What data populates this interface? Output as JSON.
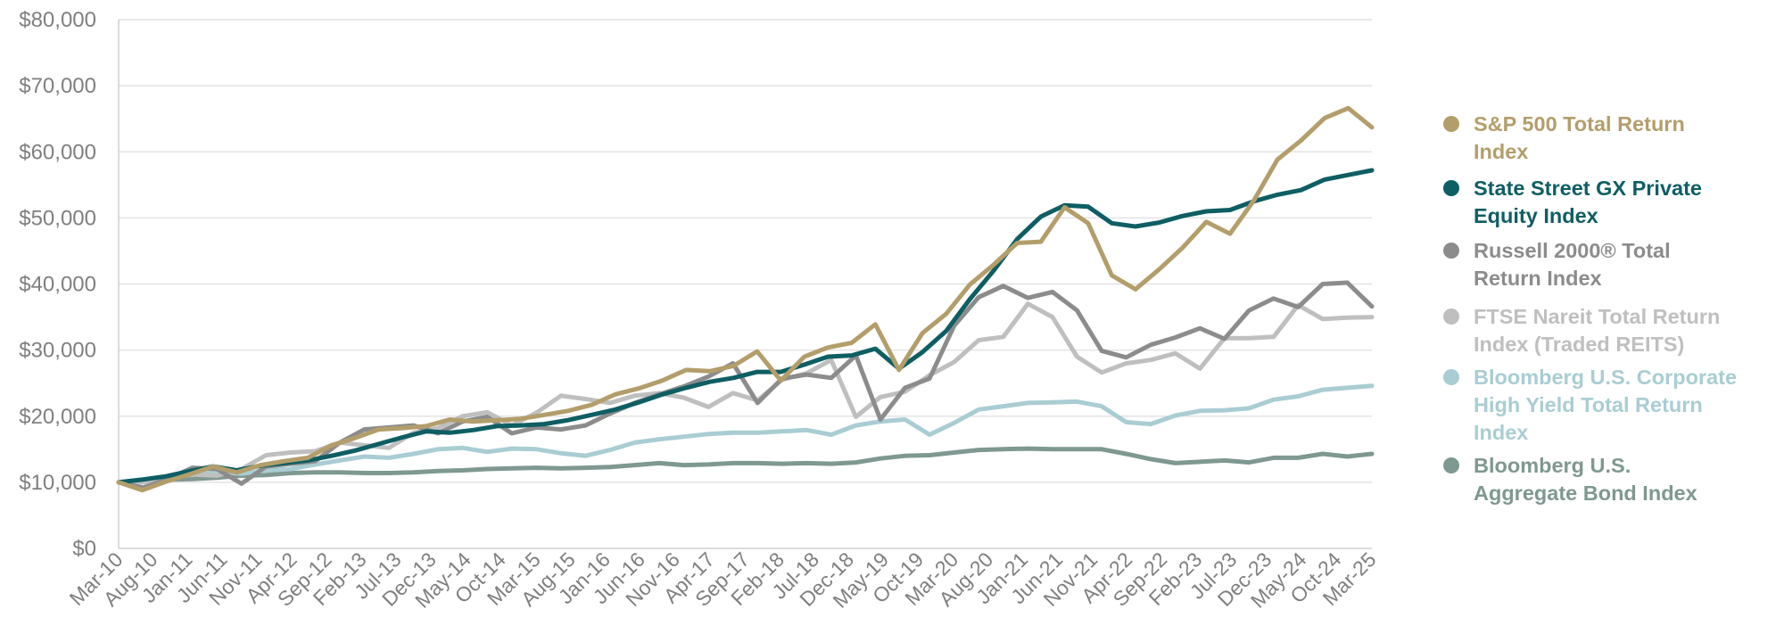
{
  "chart_data": {
    "type": "line",
    "title": "",
    "xlabel": "",
    "ylabel": "",
    "ylim": [
      0,
      80000
    ],
    "yticks": [
      0,
      10000,
      20000,
      30000,
      40000,
      50000,
      60000,
      70000,
      80000
    ],
    "ytick_labels": [
      "$0",
      "$10,000",
      "$20,000",
      "$30,000",
      "$40,000",
      "$50,000",
      "$60,000",
      "$70,000",
      "$80,000"
    ],
    "grid": true,
    "legend_position": "right",
    "x_tick_labels": [
      "Mar-10",
      "Aug-10",
      "Jan-11",
      "Jun-11",
      "Nov-11",
      "Apr-12",
      "Sep-12",
      "Feb-13",
      "Jul-13",
      "Dec-13",
      "May-14",
      "Oct-14",
      "Mar-15",
      "Aug-15",
      "Jan-16",
      "Jun-16",
      "Nov-16",
      "Apr-17",
      "Sep-17",
      "Feb-18",
      "Jul-18",
      "Dec-18",
      "May-19",
      "Oct-19",
      "Mar-20",
      "Aug-20",
      "Jan-21",
      "Jun-21",
      "Nov-21",
      "Apr-22",
      "Sep-22",
      "Feb-23",
      "Jul-23",
      "Dec-23",
      "May-24",
      "Oct-24",
      "Mar-25"
    ],
    "series": [
      {
        "name": "Bloomberg U.S. Aggregate Bond Index",
        "legend_lines": [
          "Bloomberg U.S.",
          "Aggregate Bond Index"
        ],
        "color": "#7f9891",
        "values": [
          10000,
          10300,
          10400,
          10500,
          10700,
          11000,
          11100,
          11400,
          11500,
          11500,
          11400,
          11400,
          11500,
          11700,
          11800,
          12000,
          12100,
          12200,
          12100,
          12200,
          12300,
          12600,
          12900,
          12600,
          12700,
          12900,
          12900,
          12800,
          12900,
          12800,
          13000,
          13600,
          14000,
          14100,
          14500,
          14900,
          15000,
          15100,
          15000,
          15000,
          15000,
          14300,
          13500,
          12900,
          13100,
          13300,
          13000,
          13700,
          13700,
          14300,
          13900,
          14300
        ]
      },
      {
        "name": "Bloomberg U.S. Corporate High Yield Total Return Index",
        "legend_lines": [
          "Bloomberg U.S. Corporate",
          "High Yield Total Return",
          "Index"
        ],
        "color": "#a9cdd3",
        "values": [
          10000,
          10400,
          10900,
          11300,
          11600,
          11300,
          11800,
          12000,
          12700,
          13300,
          13900,
          13700,
          14300,
          15000,
          15200,
          14600,
          15100,
          15000,
          14400,
          14000,
          14900,
          16000,
          16500,
          16900,
          17300,
          17500,
          17500,
          17700,
          17900,
          17200,
          18600,
          19200,
          19500,
          17200,
          19000,
          21000,
          21500,
          22000,
          22100,
          22200,
          21500,
          19100,
          18800,
          20100,
          20800,
          20900,
          21200,
          22500,
          23000,
          24000,
          24300,
          24600
        ]
      },
      {
        "name": "FTSE Nareit Total Return Index (Traded REITS)",
        "legend_lines": [
          "FTSE Nareit Total  Return",
          "Index (Traded REITS)"
        ],
        "color": "#bfbfbf",
        "values": [
          10000,
          10000,
          10500,
          11200,
          11000,
          12000,
          14100,
          14500,
          14700,
          16000,
          15600,
          15200,
          17500,
          18200,
          20000,
          20600,
          18600,
          20500,
          23100,
          22600,
          22000,
          23100,
          23500,
          22800,
          21400,
          23500,
          22400,
          25500,
          26500,
          28500,
          19900,
          22900,
          23700,
          26200,
          28200,
          31500,
          32000,
          37000,
          35000,
          29000,
          26600,
          28000,
          28500,
          29500,
          27200,
          31800,
          31800,
          32000,
          36800,
          34700,
          34900,
          35000
        ]
      },
      {
        "name": "Russell 2000® Total Return Index",
        "legend_lines": [
          "Russell 2000® Total",
          "Return Index"
        ],
        "color": "#8c8c8c",
        "values": [
          10000,
          9200,
          10500,
          12200,
          12000,
          9800,
          12400,
          12800,
          13200,
          16000,
          18000,
          18300,
          18600,
          17400,
          19200,
          19900,
          17400,
          18300,
          18000,
          18600,
          20400,
          22000,
          23300,
          24500,
          26000,
          28000,
          22000,
          25700,
          26300,
          25800,
          29200,
          19500,
          24300,
          25700,
          33700,
          38000,
          39700,
          37900,
          38800,
          36000,
          29900,
          28900,
          30800,
          31900,
          33300,
          31700,
          36000,
          37800,
          36500,
          40000,
          40200,
          36600
        ]
      },
      {
        "name": "State Street GX Private Equity Index",
        "legend_lines": [
          "State Street GX Private",
          "Equity Index"
        ],
        "color": "#0e5e63",
        "values": [
          10000,
          10400,
          10900,
          11700,
          12400,
          11800,
          12500,
          12900,
          13300,
          14000,
          14800,
          15800,
          16800,
          17700,
          17500,
          17900,
          18500,
          18600,
          18800,
          19400,
          20200,
          21000,
          22100,
          23300,
          24300,
          25200,
          25800,
          26700,
          26700,
          27800,
          29000,
          29200,
          30200,
          27200,
          29700,
          32900,
          37700,
          42000,
          46800,
          50200,
          51900,
          51700,
          49200,
          48700,
          49300,
          50300,
          51000,
          51200,
          52500,
          53500,
          54200,
          55800,
          56500,
          57200
        ]
      },
      {
        "name": "S&P 500 Total Return Index",
        "legend_lines": [
          "S&P 500 Total Return",
          "Index"
        ],
        "color": "#b39e6b",
        "values": [
          10000,
          8800,
          10100,
          11200,
          12400,
          11500,
          12600,
          13200,
          13700,
          15600,
          16700,
          18000,
          18200,
          18500,
          19500,
          19200,
          19400,
          19600,
          20200,
          20800,
          21700,
          23300,
          24200,
          25400,
          27000,
          26800,
          27600,
          29800,
          25400,
          29000,
          30400,
          31100,
          33900,
          27000,
          32600,
          35500,
          39900,
          42900,
          46200,
          46400,
          51600,
          49200,
          41300,
          39200,
          42200,
          45500,
          49400,
          47600,
          52600,
          58800,
          61700,
          65100,
          66600,
          63700
        ]
      }
    ]
  }
}
